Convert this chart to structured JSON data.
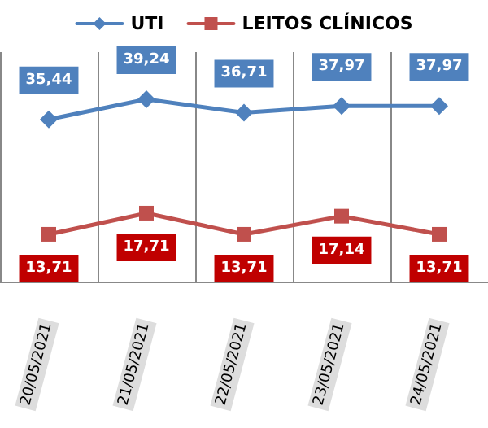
{
  "chart_data": {
    "type": "line",
    "categories": [
      "20/05/2021",
      "21/05/2021",
      "22/05/2021",
      "23/05/2021",
      "24/05/2021"
    ],
    "series": [
      {
        "name": "UTI",
        "color": "#4f81bd",
        "marker": "diamond",
        "values": [
          35.44,
          39.24,
          36.71,
          37.97,
          37.97
        ],
        "value_labels": [
          "35,44",
          "39,24",
          "36,71",
          "37,97",
          "37,97"
        ]
      },
      {
        "name": "LEITOS CLÍNICOS",
        "color": "#c0504d",
        "marker": "square",
        "values": [
          13.71,
          17.71,
          13.71,
          17.14,
          13.71
        ],
        "value_labels": [
          "13,71",
          "17,71",
          "13,71",
          "17,14",
          "13,71"
        ]
      }
    ],
    "grid": "x",
    "legend": "top",
    "line_style": "solid"
  }
}
